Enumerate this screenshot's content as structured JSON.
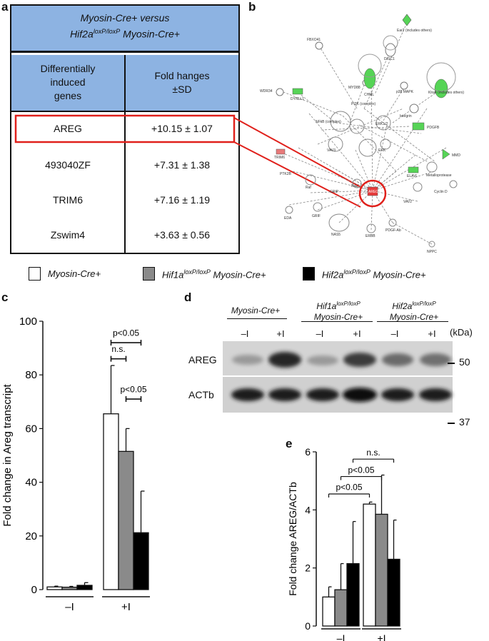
{
  "panels": {
    "a": "a",
    "b": "b",
    "c": "c",
    "d": "d",
    "e": "e"
  },
  "table": {
    "title_line1": "Myosin-Cre+ versus",
    "title_line2_pre": "Hif2a",
    "title_line2_sup": "loxP/loxP",
    "title_line2_post": " Myosin-Cre+",
    "col1_header": [
      "Differentially",
      "induced",
      "genes"
    ],
    "col2_header": [
      "Fold hanges",
      "±SD"
    ],
    "rows": [
      {
        "gene": "AREG",
        "fold": "+10.15 ± 1.07"
      },
      {
        "gene": "493040ZF",
        "fold": "+7.31 ± 1.38"
      },
      {
        "gene": "TRIM6",
        "fold": "+7.16 ± 1.19"
      },
      {
        "gene": "Zswim4",
        "fold": "+3.63 ± 0.56"
      }
    ],
    "highlight_color": "#e0201b"
  },
  "network": {
    "labels": [
      "Ear2 (includes others)",
      "FBXO41",
      "DISC1",
      "WDR34",
      "DYNLL1",
      "MYD88",
      "CHML",
      "p38 MAPK",
      "Klra4 (includes others)",
      "NFkB (complex)",
      "ERK1/2",
      "PDGFB",
      "VAV3",
      "ERK",
      "Integrin",
      "GRIP",
      "MMD",
      "PI3K (complex)",
      "ELAVL",
      "Metalloprotease",
      "TRIM6",
      "PTK2B",
      "Raf",
      "Ras",
      "VAV2",
      "Cyclin D",
      "EDA",
      "GRIF",
      "NAS5",
      "ERBB",
      "PDGF-Ab",
      "NPPC",
      "AREG"
    ]
  },
  "legend": {
    "items": [
      {
        "text_pre": "Myosin-Cre+",
        "sup": "",
        "text_post": "",
        "fill": "#ffffff"
      },
      {
        "text_pre": "Hif1a",
        "sup": "loxP/loxP",
        "text_post": " Myosin-Cre+",
        "fill": "#8a8a8a"
      },
      {
        "text_pre": "Hif2a",
        "sup": "loxP/loxP",
        "text_post": " Myosin-Cre+",
        "fill": "#000000"
      }
    ]
  },
  "blot": {
    "groups": [
      {
        "line1": "Myosin-Cre+",
        "line2": ""
      },
      {
        "line1": "Hif1aloxP/loxP",
        "line2": "Myosin-Cre+"
      },
      {
        "line1": "Hif2aloxP/loxP",
        "line2": "Myosin-Cre+"
      }
    ],
    "lanes": [
      "–I",
      "+I",
      "–I",
      "+I",
      "–I",
      "+I"
    ],
    "kda_label": "(kDa)",
    "rows": [
      "AREG",
      "ACTb"
    ],
    "markers": [
      "50",
      "37"
    ]
  },
  "chart_data": [
    {
      "type": "bar",
      "panel": "c",
      "ylabel": "Fold change in Areg transcript",
      "ylim": [
        0,
        100
      ],
      "yticks": [
        0,
        20,
        40,
        60,
        80,
        100
      ],
      "groups": [
        "–I",
        "+I"
      ],
      "series": [
        {
          "name": "Myosin-Cre+",
          "color": "#ffffff",
          "values": [
            1.0,
            65.5
          ],
          "err": [
            0.3,
            18
          ]
        },
        {
          "name": "Hif1a loxP/loxP Myosin-Cre+",
          "color": "#8a8a8a",
          "values": [
            0.9,
            51.5
          ],
          "err": [
            0.3,
            8.5
          ]
        },
        {
          "name": "Hif2a loxP/loxP Myosin-Cre+",
          "color": "#000000",
          "values": [
            1.6,
            21.2
          ],
          "err": [
            1.0,
            15.5
          ]
        }
      ],
      "annotations": [
        {
          "text": "p<0.05",
          "from": 0,
          "to": 2
        },
        {
          "text": "n.s.",
          "from": 0,
          "to": 1
        },
        {
          "text": "p<0.05",
          "from": 1,
          "to": 2
        }
      ]
    },
    {
      "type": "bar",
      "panel": "e",
      "ylabel": "Fold change AREG/ACTb",
      "ylim": [
        0,
        6
      ],
      "yticks": [
        0,
        2,
        4,
        6
      ],
      "groups": [
        "–I",
        "+I"
      ],
      "series": [
        {
          "name": "Myosin-Cre+",
          "color": "#ffffff",
          "values": [
            1.0,
            4.2
          ],
          "err": [
            0.35,
            0.07
          ]
        },
        {
          "name": "Hif1a loxP/loxP Myosin-Cre+",
          "color": "#8a8a8a",
          "values": [
            1.25,
            3.85
          ],
          "err": [
            0.9,
            1.35
          ]
        },
        {
          "name": "Hif2a loxP/loxP Myosin-Cre+",
          "color": "#000000",
          "values": [
            2.15,
            2.3
          ],
          "err": [
            1.45,
            1.35
          ]
        }
      ],
      "annotations": [
        {
          "text": "n.s.",
          "from": "-I:0",
          "to": "+I:2"
        },
        {
          "text": "p<0.05",
          "from": "-I:1",
          "to": "+I:1"
        },
        {
          "text": "p<0.05",
          "from": "-I:0",
          "to": "+I:0"
        }
      ]
    }
  ]
}
